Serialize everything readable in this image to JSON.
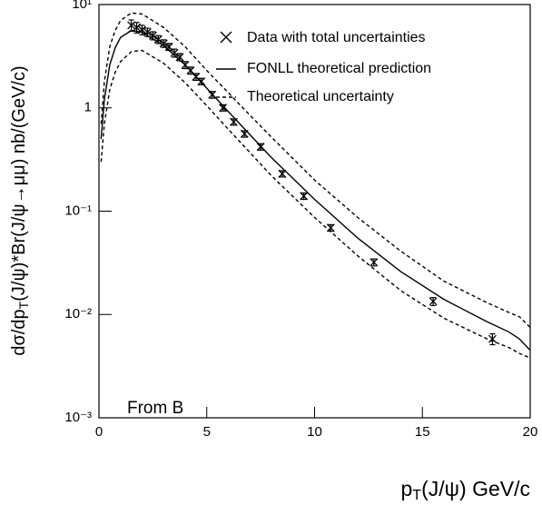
{
  "chart_data": {
    "type": "scatter",
    "xlabel": {
      "main": "p",
      "sub": "T",
      "rest": "(J/ψ) GeV/c"
    },
    "ylabel": {
      "main": "dσ/dp",
      "sub": "T",
      "rest": "(J/ψ)*Br(J/ψ→μμ) nb/(GeV/c)"
    },
    "annotation": "From B",
    "xlim": [
      0,
      20
    ],
    "ylim": [
      0.001,
      10
    ],
    "log_y": true,
    "legend": "top-right",
    "xticks": [
      0,
      5,
      10,
      15,
      20
    ],
    "yticks": [
      {
        "value": 10,
        "label": "10¹"
      },
      1,
      {
        "value": 0.1,
        "label": "10⁻¹"
      },
      {
        "value": 0.01,
        "label": "10⁻²"
      },
      {
        "value": 0.001,
        "label": "10⁻³"
      }
    ],
    "data": {
      "name": "Data with total uncertainties",
      "color": "#000000",
      "x": [
        1.5,
        1.75,
        2.0,
        2.25,
        2.5,
        2.75,
        3.0,
        3.25,
        3.5,
        3.75,
        4.0,
        4.25,
        4.5,
        4.75,
        5.25,
        5.75,
        6.25,
        6.75,
        7.5,
        8.5,
        9.5,
        10.75,
        12.75,
        15.5,
        18.25
      ],
      "values": [
        6.3,
        6.0,
        5.7,
        5.4,
        5.0,
        4.6,
        4.2,
        3.9,
        3.4,
        3.1,
        2.6,
        2.3,
        2.0,
        1.8,
        1.34,
        1.0,
        0.73,
        0.56,
        0.42,
        0.23,
        0.14,
        0.069,
        0.032,
        0.0134,
        0.0058
      ],
      "errors": [
        0.8,
        0.7,
        0.6,
        0.5,
        0.45,
        0.4,
        0.35,
        0.3,
        0.3,
        0.25,
        0.2,
        0.18,
        0.15,
        0.13,
        0.1,
        0.07,
        0.05,
        0.04,
        0.03,
        0.016,
        0.01,
        0.005,
        0.0025,
        0.0012,
        0.0007
      ]
    },
    "theory_x": [
      0.1,
      0.25,
      0.5,
      0.75,
      1,
      1.5,
      2,
      3,
      4,
      5,
      6,
      7,
      8,
      10,
      12,
      14,
      16,
      18,
      19,
      19.5,
      20
    ],
    "prediction": {
      "name": "FONLL theoretical prediction",
      "color": "#000000",
      "values": [
        0.5,
        1.2,
        2.6,
        3.8,
        4.8,
        5.6,
        5.4,
        4.0,
        2.6,
        1.55,
        0.92,
        0.55,
        0.33,
        0.13,
        0.055,
        0.026,
        0.014,
        0.0085,
        0.0068,
        0.0058,
        0.0045
      ]
    },
    "uncertainty": {
      "name": "Theoretical uncertainty",
      "color": "#000000",
      "upper": [
        0.7,
        1.8,
        3.9,
        5.6,
        7.0,
        8.3,
        8.1,
        6.0,
        3.9,
        2.3,
        1.4,
        0.85,
        0.52,
        0.2,
        0.087,
        0.041,
        0.021,
        0.013,
        0.0105,
        0.0095,
        0.0075
      ],
      "lower": [
        0.3,
        0.7,
        1.5,
        2.2,
        2.8,
        3.5,
        3.6,
        2.7,
        1.75,
        1.05,
        0.62,
        0.37,
        0.22,
        0.087,
        0.037,
        0.017,
        0.0092,
        0.0058,
        0.0048,
        0.0042,
        0.0038
      ]
    }
  }
}
